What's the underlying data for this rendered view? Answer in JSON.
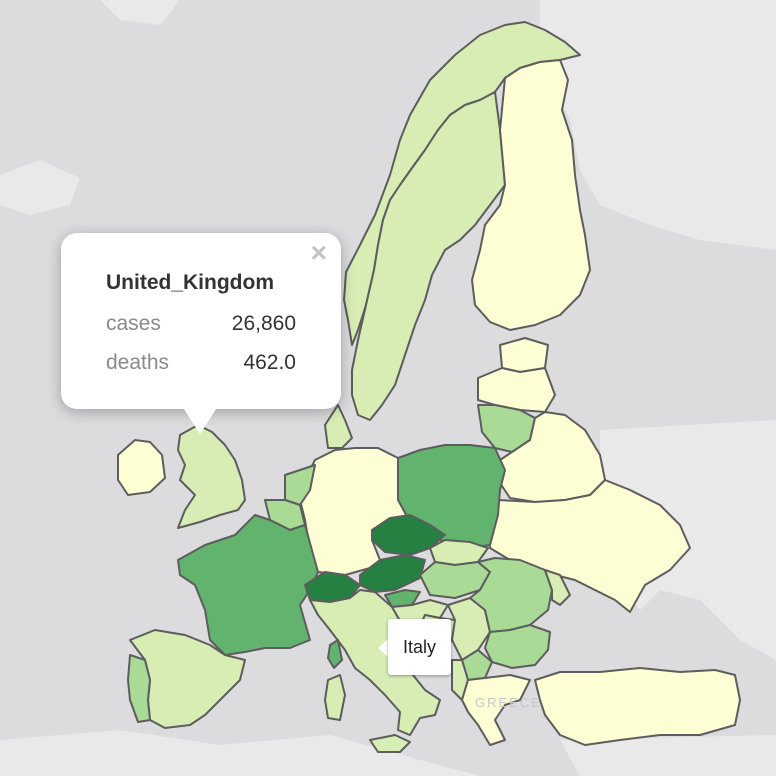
{
  "popup": {
    "title": "United_Kingdom",
    "rows": [
      {
        "label": "cases",
        "value": "26,860"
      },
      {
        "label": "deaths",
        "value": "462.0"
      }
    ],
    "close_symbol": "×"
  },
  "tooltip": {
    "label": "Italy"
  },
  "basemap_labels": {
    "greece": "GREECE"
  },
  "colors": {
    "sea": "#dcdcde",
    "land_outside": "#e9e9ea",
    "scale_lightest": "#fefed4",
    "scale_light": "#d7edb4",
    "scale_medium": "#a9da96",
    "scale_strong": "#62b36d",
    "scale_darkest": "#248141",
    "border": "#5d5d5d"
  },
  "countries": [
    {
      "name": "Norway",
      "level": "light"
    },
    {
      "name": "Sweden",
      "level": "light"
    },
    {
      "name": "Finland",
      "level": "lightest"
    },
    {
      "name": "Estonia",
      "level": "lightest"
    },
    {
      "name": "Latvia",
      "level": "lightest"
    },
    {
      "name": "Lithuania",
      "level": "medium"
    },
    {
      "name": "Belarus",
      "level": "lightest"
    },
    {
      "name": "Ukraine",
      "level": "lightest"
    },
    {
      "name": "Poland",
      "level": "strong"
    },
    {
      "name": "Germany",
      "level": "lightest"
    },
    {
      "name": "Denmark",
      "level": "light"
    },
    {
      "name": "Netherlands",
      "level": "medium"
    },
    {
      "name": "Belgium",
      "level": "medium"
    },
    {
      "name": "France",
      "level": "strong"
    },
    {
      "name": "United_Kingdom",
      "level": "light"
    },
    {
      "name": "Ireland",
      "level": "lightest"
    },
    {
      "name": "Spain",
      "level": "light"
    },
    {
      "name": "Portugal",
      "level": "medium"
    },
    {
      "name": "Italy",
      "level": "light"
    },
    {
      "name": "Switzerland",
      "level": "darkest"
    },
    {
      "name": "Austria",
      "level": "darkest"
    },
    {
      "name": "Czechia",
      "level": "darkest"
    },
    {
      "name": "Slovakia",
      "level": "light"
    },
    {
      "name": "Hungary",
      "level": "medium"
    },
    {
      "name": "Slovenia",
      "level": "strong"
    },
    {
      "name": "Croatia",
      "level": "light"
    },
    {
      "name": "Romania",
      "level": "medium"
    },
    {
      "name": "Moldova",
      "level": "light"
    },
    {
      "name": "Bulgaria",
      "level": "medium"
    },
    {
      "name": "Serbia",
      "level": "light"
    },
    {
      "name": "Bosnia",
      "level": "light"
    },
    {
      "name": "Greece",
      "level": "lightest"
    },
    {
      "name": "Turkey",
      "level": "lightest"
    },
    {
      "name": "North_Macedonia",
      "level": "medium"
    },
    {
      "name": "Albania",
      "level": "light"
    }
  ]
}
